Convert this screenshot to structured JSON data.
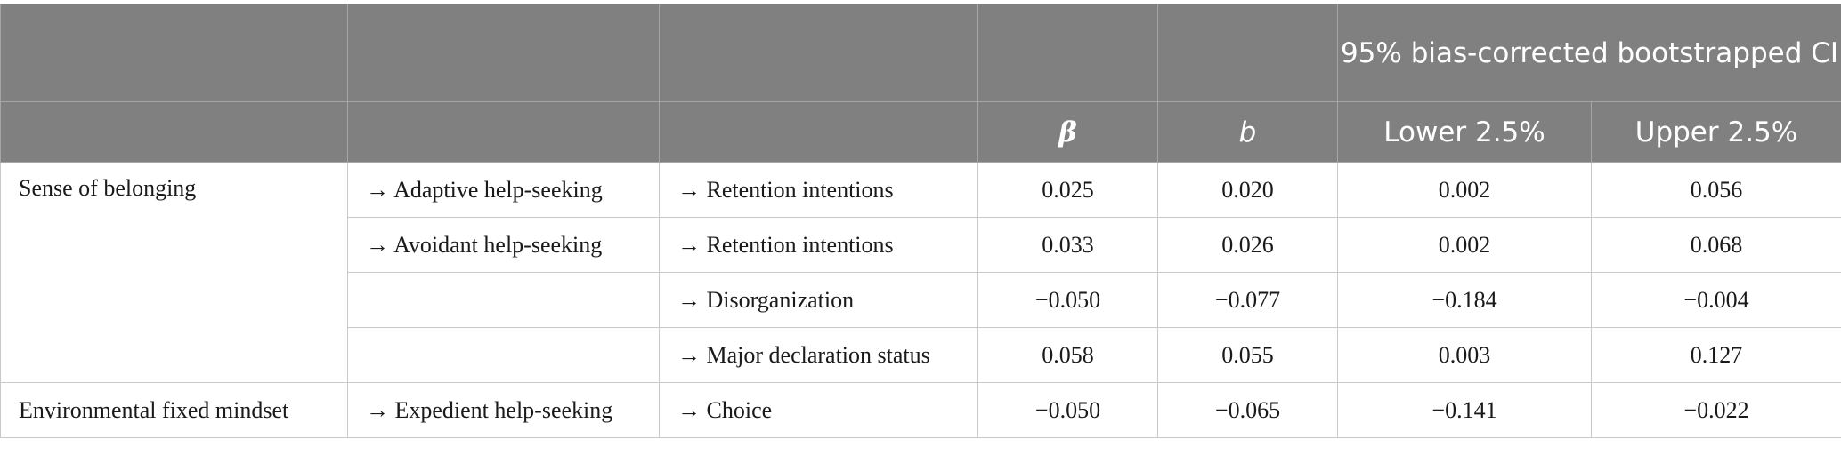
{
  "header": {
    "ci_group": "95% bias-corrected bootstrapped CI",
    "beta": "β",
    "b": "b",
    "lower": "Lower 2.5%",
    "upper": "Upper 2.5%"
  },
  "groups": [
    {
      "predictor": "Sense of belonging"
    },
    {
      "predictor": "Environmental fixed mindset"
    }
  ],
  "rows": [
    {
      "mediator": "→ Adaptive help-seeking",
      "outcome": "→ Retention intentions",
      "beta": "0.025",
      "b": "0.020",
      "lower": "0.002",
      "upper": "0.056"
    },
    {
      "mediator": "→ Avoidant help-seeking",
      "outcome": "→ Retention intentions",
      "beta": "0.033",
      "b": "0.026",
      "lower": "0.002",
      "upper": "0.068"
    },
    {
      "mediator": "",
      "outcome": "→ Disorganization",
      "beta": "−0.050",
      "b": "−0.077",
      "lower": "−0.184",
      "upper": "−0.004"
    },
    {
      "mediator": "",
      "outcome": "→ Major declaration status",
      "beta": "0.058",
      "b": "0.055",
      "lower": "0.003",
      "upper": "0.127"
    },
    {
      "mediator": "→ Expedient help-seeking",
      "outcome": "→ Choice",
      "beta": "−0.050",
      "b": "−0.065",
      "lower": "−0.141",
      "upper": "−0.022"
    }
  ]
}
